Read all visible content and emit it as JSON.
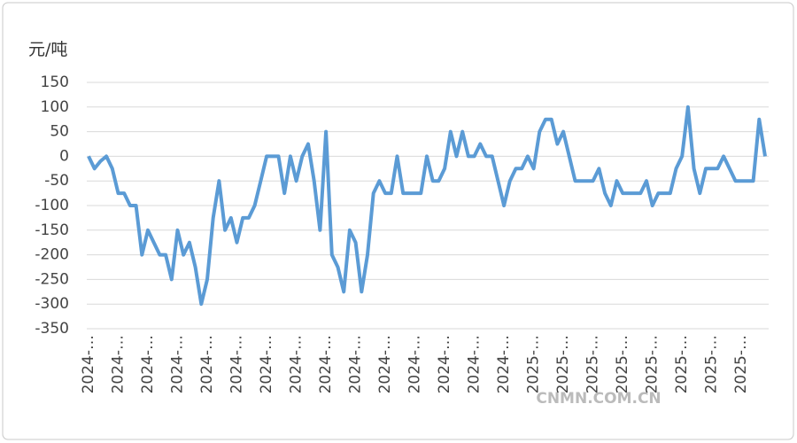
{
  "chart_data": {
    "type": "line",
    "y_unit": "元/吨",
    "watermark": "CNMN.COM.CN",
    "color": "#5b9bd5",
    "ylim": [
      -350,
      150
    ],
    "yticks": [
      150,
      100,
      50,
      0,
      -50,
      -100,
      -150,
      -200,
      -250,
      -300,
      -350
    ],
    "grid": true,
    "categories": [
      "2024-…",
      null,
      null,
      null,
      null,
      "2024-…",
      null,
      null,
      null,
      null,
      "2024-…",
      null,
      null,
      null,
      null,
      "2024-…",
      null,
      null,
      null,
      null,
      "2024-…",
      null,
      null,
      null,
      null,
      "2024-…",
      null,
      null,
      null,
      null,
      "2024-…",
      null,
      null,
      null,
      null,
      "2024-…",
      null,
      null,
      null,
      null,
      "2024-…",
      null,
      null,
      null,
      null,
      "2024-…",
      null,
      null,
      null,
      null,
      "2024-…",
      null,
      null,
      null,
      null,
      "2024-…",
      null,
      null,
      null,
      null,
      "2024-…",
      null,
      null,
      null,
      null,
      "2024-…",
      null,
      null,
      null,
      null,
      "2024-…",
      null,
      null,
      null,
      null,
      "2025-…",
      null,
      null,
      null,
      null,
      "2025-…",
      null,
      null,
      null,
      null,
      "2025-…",
      null,
      null,
      null,
      null,
      "2025-…",
      null,
      null,
      null,
      null,
      "2025-…",
      null,
      null,
      null,
      null,
      "2025-…",
      null,
      null,
      null,
      null,
      "2025-…",
      null,
      null,
      null,
      null,
      "2025-…",
      null,
      null,
      null,
      null
    ],
    "values": [
      0,
      -25,
      -10,
      0,
      -25,
      -75,
      -75,
      -100,
      -100,
      -200,
      -150,
      -175,
      -200,
      -200,
      -250,
      -150,
      -200,
      -175,
      -225,
      -300,
      -250,
      -125,
      -50,
      -150,
      -125,
      -175,
      -125,
      -125,
      -100,
      -50,
      0,
      0,
      0,
      -75,
      0,
      -50,
      0,
      25,
      -50,
      -150,
      50,
      -200,
      -225,
      -275,
      -150,
      -175,
      -275,
      -200,
      -75,
      -50,
      -75,
      -75,
      0,
      -75,
      -75,
      -75,
      -75,
      0,
      -50,
      -50,
      -25,
      50,
      0,
      50,
      0,
      0,
      25,
      0,
      0,
      -50,
      -100,
      -50,
      -25,
      -25,
      0,
      -25,
      50,
      75,
      75,
      25,
      50,
      0,
      -50,
      -50,
      -50,
      -50,
      -25,
      -75,
      -100,
      -50,
      -75,
      -75,
      -75,
      -75,
      -50,
      -100,
      -75,
      -75,
      -75,
      -25,
      0,
      100,
      -25,
      -75,
      -25,
      -25,
      -25,
      0,
      -25,
      -50,
      -50,
      -50,
      -50,
      75,
      0
    ]
  }
}
